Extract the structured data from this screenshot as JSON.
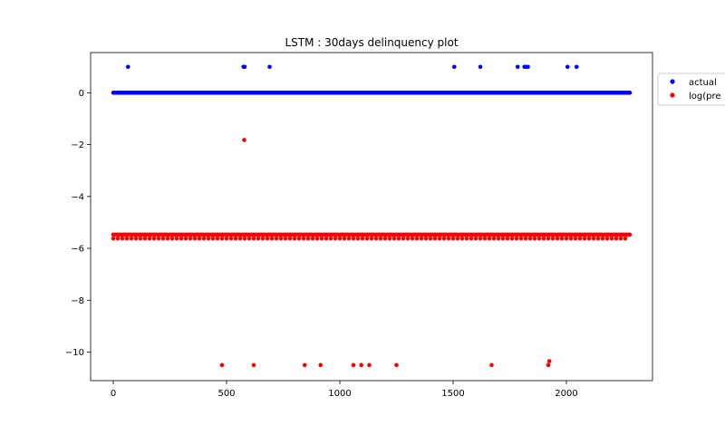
{
  "chart_data": {
    "type": "scatter",
    "title": "LSTM : 30days delinquency plot",
    "xlabel": "",
    "ylabel": "",
    "xlim": [
      -100,
      2380
    ],
    "ylim": [
      -11.1,
      1.55
    ],
    "xticks": [
      0,
      500,
      1000,
      1500,
      2000
    ],
    "yticks": [
      0,
      -2,
      -4,
      -6,
      -8,
      -10
    ],
    "ytick_labels": [
      "0",
      "−2",
      "−4",
      "−6",
      "−8",
      "−10"
    ],
    "legend_position": "upper-right-outside",
    "grid": false,
    "series": [
      {
        "name": "actual",
        "color": "#0000ff",
        "baseline": {
          "x_start": 0,
          "x_end": 2280,
          "y": 0,
          "step": 8
        },
        "points": [
          {
            "x": 65,
            "y": 1
          },
          {
            "x": 575,
            "y": 1
          },
          {
            "x": 580,
            "y": 1
          },
          {
            "x": 690,
            "y": 1
          },
          {
            "x": 1505,
            "y": 1
          },
          {
            "x": 1620,
            "y": 1
          },
          {
            "x": 1785,
            "y": 1
          },
          {
            "x": 1815,
            "y": 1
          },
          {
            "x": 1820,
            "y": 1
          },
          {
            "x": 1830,
            "y": 1
          },
          {
            "x": 2005,
            "y": 1
          },
          {
            "x": 2045,
            "y": 1
          }
        ]
      },
      {
        "name": "log(pre",
        "color": "#ff0000",
        "baseline": {
          "x_start": 0,
          "x_end": 2280,
          "y": -5.47,
          "step": 8
        },
        "baseline2": {
          "x_start": 0,
          "x_end": 2260,
          "y": -5.62,
          "step": 20
        },
        "points": [
          {
            "x": 578,
            "y": -1.82
          },
          {
            "x": 480,
            "y": -10.5
          },
          {
            "x": 620,
            "y": -10.5
          },
          {
            "x": 845,
            "y": -10.5
          },
          {
            "x": 915,
            "y": -10.5
          },
          {
            "x": 1060,
            "y": -10.5
          },
          {
            "x": 1095,
            "y": -10.5
          },
          {
            "x": 1130,
            "y": -10.5
          },
          {
            "x": 1250,
            "y": -10.5
          },
          {
            "x": 1670,
            "y": -10.5
          },
          {
            "x": 1920,
            "y": -10.5
          },
          {
            "x": 1925,
            "y": -10.35
          }
        ]
      }
    ]
  }
}
